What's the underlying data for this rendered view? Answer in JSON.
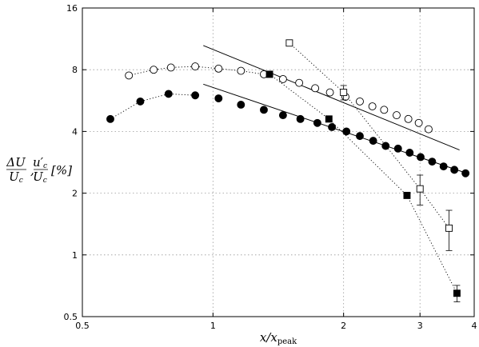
{
  "chart_data": {
    "type": "scatter",
    "title": "",
    "xlabel": "x/x_peak",
    "ylabel": "ΔU/U_c , u'_c/U_c [%]",
    "x_scale": "log",
    "y_scale": "log",
    "xlim": [
      0.5,
      4
    ],
    "ylim": [
      0.5,
      16
    ],
    "grid": true,
    "x_ticks": [
      0.5,
      1,
      2,
      3,
      4
    ],
    "x_tick_labels": [
      "0.5",
      "1",
      "2",
      "3",
      "4"
    ],
    "y_ticks": [
      0.5,
      1,
      2,
      4,
      8,
      16
    ],
    "y_tick_labels": [
      "0.5",
      "1",
      "2",
      "4",
      "8",
      "16"
    ],
    "series": [
      {
        "marker": "open-circle",
        "x": [
          0.64,
          0.73,
          0.8,
          0.91,
          1.03,
          1.16,
          1.31,
          1.45,
          1.58,
          1.72,
          1.86,
          2.02,
          2.18,
          2.33,
          2.48,
          2.65,
          2.82,
          2.98,
          3.14
        ],
        "y": [
          7.5,
          8.0,
          8.2,
          8.3,
          8.1,
          7.9,
          7.6,
          7.2,
          6.9,
          6.5,
          6.2,
          5.9,
          5.6,
          5.3,
          5.1,
          4.8,
          4.6,
          4.4,
          4.1
        ]
      },
      {
        "marker": "filled-circle",
        "x": [
          0.58,
          0.68,
          0.79,
          0.91,
          1.03,
          1.16,
          1.31,
          1.45,
          1.59,
          1.74,
          1.88,
          2.03,
          2.18,
          2.34,
          2.5,
          2.67,
          2.84,
          3.01,
          3.2,
          3.4,
          3.6,
          3.82
        ],
        "y": [
          4.6,
          5.6,
          6.1,
          6.0,
          5.8,
          5.4,
          5.1,
          4.8,
          4.6,
          4.4,
          4.2,
          4.0,
          3.8,
          3.6,
          3.4,
          3.3,
          3.15,
          3.0,
          2.85,
          2.7,
          2.6,
          2.5
        ]
      },
      {
        "marker": "open-square",
        "x": [
          1.5,
          2.0,
          3.0,
          3.5
        ],
        "y": [
          10.8,
          6.2,
          2.1,
          1.35
        ],
        "y_err": [
          0.3,
          0.5,
          0.35,
          0.3
        ]
      },
      {
        "marker": "filled-square",
        "x": [
          1.35,
          1.85,
          2.8,
          3.65
        ],
        "y": [
          7.6,
          4.6,
          1.95,
          0.65
        ],
        "y_err": [
          0.15,
          0.1,
          0.05,
          0.06
        ]
      }
    ],
    "fit_lines": [
      {
        "x": [
          0.95,
          3.7
        ],
        "y": [
          10.5,
          3.25
        ]
      },
      {
        "x": [
          0.95,
          3.85
        ],
        "y": [
          6.8,
          2.5
        ]
      }
    ],
    "connectors": [
      {
        "style": "dotted",
        "x": [
          0.58,
          0.68,
          0.79,
          0.91
        ],
        "y": [
          4.6,
          5.6,
          6.1,
          6.0
        ]
      },
      {
        "style": "dotted",
        "x": [
          0.64,
          0.73,
          0.8,
          0.91,
          1.03,
          1.16,
          1.31
        ],
        "y": [
          7.5,
          8.0,
          8.2,
          8.3,
          8.1,
          7.9,
          7.6
        ]
      },
      {
        "style": "dotted",
        "x": [
          1.5,
          2.0,
          3.0,
          3.5
        ],
        "y": [
          10.8,
          6.2,
          2.1,
          1.35
        ]
      },
      {
        "style": "dotted",
        "x": [
          1.35,
          1.85,
          2.8,
          3.65
        ],
        "y": [
          7.6,
          4.6,
          1.95,
          0.65
        ]
      }
    ]
  }
}
